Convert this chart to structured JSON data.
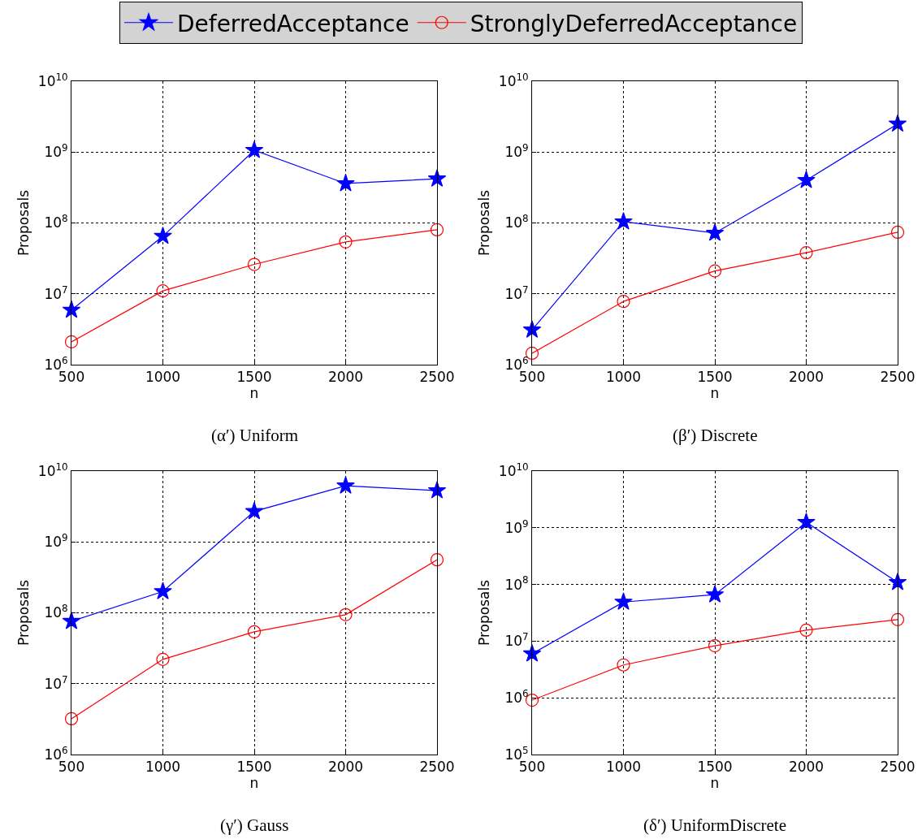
{
  "chart_data": [
    {
      "type": "line",
      "xlabel": "n",
      "ylabel": "Proposals",
      "annotations": [
        "(α′) Uniform"
      ],
      "x": [
        500,
        1000,
        1500,
        2000,
        2500
      ],
      "xlim": [
        500,
        2500
      ],
      "xticks": [
        500,
        1000,
        1500,
        2000,
        2500
      ],
      "log": "y",
      "ylim": [
        1000000,
        10000000000
      ],
      "yticks": [
        {
          "value": 1000000,
          "label": "10$^{6}$"
        },
        {
          "value": 10000000,
          "label": "10$^{7}$"
        },
        {
          "value": 100000000,
          "label": "10$^{8}$"
        },
        {
          "value": 1000000000,
          "label": "10$^{9}$"
        },
        {
          "value": 10000000000,
          "label": "10$^{10}$"
        }
      ],
      "grid": true,
      "legend": "top",
      "series": [
        {
          "name": "DeferredAcceptance",
          "color": "#0000ff",
          "marker": "star",
          "values": [
            5900000,
            65000000,
            1060000000,
            360000000,
            420000000
          ]
        },
        {
          "name": "StronglyDeferredAcceptance",
          "color": "#ff0000",
          "marker": "circle",
          "values": [
            2100000,
            11000000,
            26000000,
            54000000,
            80000000
          ]
        }
      ]
    },
    {
      "type": "line",
      "xlabel": "n",
      "ylabel": "Proposals",
      "annotations": [
        "(β′) Discrete"
      ],
      "x": [
        500,
        1000,
        1500,
        2000,
        2500
      ],
      "xlim": [
        500,
        2500
      ],
      "xticks": [
        500,
        1000,
        1500,
        2000,
        2500
      ],
      "log": "y",
      "ylim": [
        1000000,
        10000000000
      ],
      "yticks": [
        {
          "value": 1000000,
          "label": "10$^{6}$"
        },
        {
          "value": 10000000,
          "label": "10$^{7}$"
        },
        {
          "value": 100000000,
          "label": "10$^{8}$"
        },
        {
          "value": 1000000000,
          "label": "10$^{9}$"
        },
        {
          "value": 10000000000,
          "label": "10$^{10}$"
        }
      ],
      "grid": true,
      "series": [
        {
          "color": "#0000ff",
          "marker": "star",
          "values": [
            3100000,
            104000000,
            72000000,
            400000000,
            2500000000
          ]
        },
        {
          "color": "#ff0000",
          "marker": "circle",
          "values": [
            1450000,
            7800000,
            21000000,
            38000000,
            74000000
          ]
        }
      ]
    },
    {
      "type": "line",
      "xlabel": "n",
      "ylabel": "Proposals",
      "annotations": [
        "(γ′) Gauss"
      ],
      "x": [
        500,
        1000,
        1500,
        2000,
        2500
      ],
      "xlim": [
        500,
        2500
      ],
      "xticks": [
        500,
        1000,
        1500,
        2000,
        2500
      ],
      "log": "y",
      "ylim": [
        1000000,
        10000000000
      ],
      "yticks": [
        {
          "value": 1000000,
          "label": "10$^{6}$"
        },
        {
          "value": 10000000,
          "label": "10$^{7}$"
        },
        {
          "value": 100000000,
          "label": "10$^{8}$"
        },
        {
          "value": 1000000000,
          "label": "10$^{9}$"
        },
        {
          "value": 10000000000,
          "label": "10$^{10}$"
        }
      ],
      "grid": true,
      "series": [
        {
          "color": "#0000ff",
          "marker": "star",
          "values": [
            76000000,
            200000000,
            2700000000,
            6200000000,
            5300000000
          ]
        },
        {
          "color": "#ff0000",
          "marker": "circle",
          "values": [
            3200000,
            22000000,
            54000000,
            94000000,
            560000000
          ]
        }
      ]
    },
    {
      "type": "line",
      "xlabel": "n",
      "ylabel": "Proposals",
      "annotations": [
        "(δ′) UniformDiscrete"
      ],
      "x": [
        500,
        1000,
        1500,
        2000,
        2500
      ],
      "xlim": [
        500,
        2500
      ],
      "xticks": [
        500,
        1000,
        1500,
        2000,
        2500
      ],
      "log": "y",
      "ylim": [
        100000,
        10000000000
      ],
      "yticks": [
        {
          "value": 100000,
          "label": "10$^{5}$"
        },
        {
          "value": 1000000,
          "label": "10$^{6}$"
        },
        {
          "value": 10000000,
          "label": "10$^{7}$"
        },
        {
          "value": 100000000,
          "label": "10$^{8}$"
        },
        {
          "value": 1000000000,
          "label": "10$^{9}$"
        },
        {
          "value": 10000000000,
          "label": "10$^{10}$"
        }
      ],
      "grid": true,
      "series": [
        {
          "color": "#0000ff",
          "marker": "star",
          "values": [
            6000000,
            49000000,
            66000000,
            1250000000,
            109000000
          ]
        },
        {
          "color": "#ff0000",
          "marker": "circle",
          "values": [
            910000,
            3800000,
            8300000,
            15600000,
            24000000
          ]
        }
      ]
    }
  ]
}
